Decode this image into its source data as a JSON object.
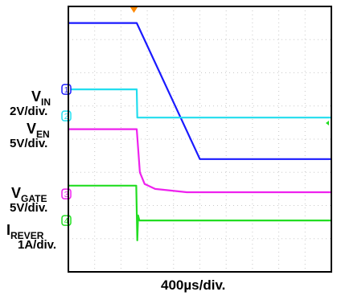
{
  "chart_data": {
    "type": "line",
    "xlabel": "400µs/div.",
    "x_divisions": 10,
    "y_divisions": 8,
    "grid": true,
    "channel_scales": {
      "VIN": "2V/div.",
      "VEN": "5V/div.",
      "VGATE": "5V/div.",
      "IREVER": "1A/div."
    },
    "series": [
      {
        "id": "VIN",
        "name_main": "V",
        "name_sub": "IN",
        "scale": "2V/div.",
        "marker": "1",
        "color": "#1a1aff",
        "ref_level_div": 5.5,
        "x": [
          0,
          2.6,
          5.0,
          10
        ],
        "y": [
          7.5,
          7.5,
          3.4,
          3.4
        ]
      },
      {
        "id": "VEN",
        "name_main": "V",
        "name_sub": "EN",
        "scale": "5V/div.",
        "marker": "2",
        "color": "#22ddee",
        "ref_level_div": 4.7,
        "x": [
          0,
          2.6,
          2.62,
          10
        ],
        "y": [
          5.5,
          5.5,
          4.65,
          4.65
        ]
      },
      {
        "id": "VGATE",
        "name_main": "V",
        "name_sub": "GATE",
        "scale": "5V/div.",
        "marker": "3",
        "color": "#ee22ee",
        "ref_level_div": 2.35,
        "x": [
          0,
          2.6,
          2.72,
          2.9,
          3.3,
          4.5,
          10
        ],
        "y": [
          4.3,
          4.3,
          3.0,
          2.65,
          2.5,
          2.4,
          2.4
        ]
      },
      {
        "id": "IREVER",
        "name_main": "I",
        "name_sub": "REVER",
        "scale": "1A/div.",
        "marker": "4",
        "color": "#22dd22",
        "ref_level_div": 1.55,
        "x": [
          0,
          2.58,
          2.62,
          2.65,
          2.7,
          10
        ],
        "y": [
          2.6,
          2.6,
          0.95,
          1.7,
          1.55,
          1.55
        ]
      }
    ]
  }
}
